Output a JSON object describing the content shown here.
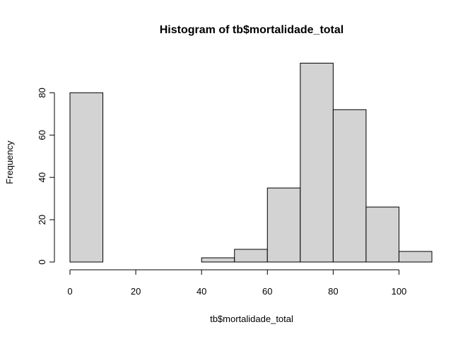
{
  "chart_data": {
    "type": "bar",
    "title": "Histogram of tb$mortalidade_total",
    "xlabel": "tb$mortalidade_total",
    "ylabel": "Frequency",
    "bins": [
      {
        "from": 0,
        "to": 10,
        "count": 80
      },
      {
        "from": 10,
        "to": 20,
        "count": 0
      },
      {
        "from": 20,
        "to": 30,
        "count": 0
      },
      {
        "from": 30,
        "to": 40,
        "count": 0
      },
      {
        "from": 40,
        "to": 50,
        "count": 2
      },
      {
        "from": 50,
        "to": 60,
        "count": 6
      },
      {
        "from": 60,
        "to": 70,
        "count": 35
      },
      {
        "from": 70,
        "to": 80,
        "count": 94
      },
      {
        "from": 80,
        "to": 90,
        "count": 72
      },
      {
        "from": 90,
        "to": 100,
        "count": 26
      },
      {
        "from": 100,
        "to": 110,
        "count": 5
      }
    ],
    "xlim": [
      0,
      110
    ],
    "ylim": [
      0,
      94
    ],
    "x_ticks": [
      0,
      20,
      40,
      60,
      80,
      100
    ],
    "y_ticks": [
      0,
      20,
      40,
      60,
      80
    ],
    "colors": {
      "bar_fill": "#d3d3d3",
      "bar_stroke": "#000000",
      "background": "#ffffff"
    },
    "grid": false
  }
}
